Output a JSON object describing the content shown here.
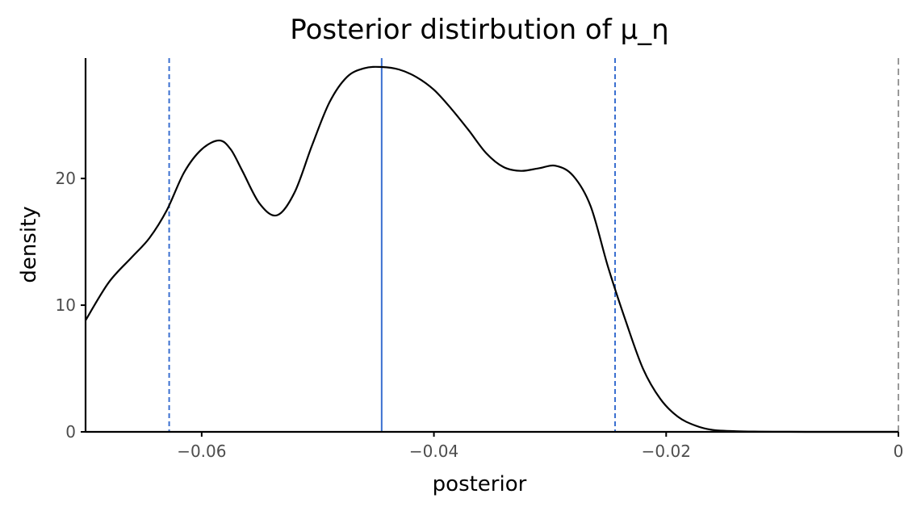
{
  "chart_data": {
    "type": "line",
    "title": "Posterior distirbution of μ_η",
    "xlabel": "posterior",
    "ylabel": "density",
    "xlim": [
      -0.07,
      0.0
    ],
    "ylim": [
      0,
      29.5
    ],
    "x_ticks": [
      -0.06,
      -0.04,
      -0.02,
      0
    ],
    "x_tick_labels": [
      "−0.06",
      "−0.04",
      "−0.02",
      "0"
    ],
    "y_ticks": [
      0,
      10,
      20
    ],
    "y_tick_labels": [
      "0",
      "10",
      "20"
    ],
    "grid": false,
    "legend": "none",
    "series": [
      {
        "x": [
          -0.07,
          -0.068,
          -0.066,
          -0.0645,
          -0.063,
          -0.0615,
          -0.06,
          -0.0585,
          -0.0575,
          -0.0565,
          -0.055,
          -0.0535,
          -0.052,
          -0.0505,
          -0.049,
          -0.0475,
          -0.046,
          -0.0445,
          -0.043,
          -0.0415,
          -0.04,
          -0.0385,
          -0.037,
          -0.0355,
          -0.034,
          -0.0325,
          -0.031,
          -0.0295,
          -0.028,
          -0.0265,
          -0.025,
          -0.0235,
          -0.022,
          -0.0205,
          -0.019,
          -0.0175,
          -0.016,
          -0.014,
          -0.012,
          -0.01,
          -0.008,
          -0.005,
          0.0
        ],
        "y": [
          8.8,
          11.8,
          13.8,
          15.3,
          17.5,
          20.5,
          22.3,
          23.0,
          22.3,
          20.6,
          18.0,
          17.1,
          18.9,
          22.6,
          26.0,
          28.0,
          28.7,
          28.8,
          28.6,
          28.0,
          27.0,
          25.5,
          23.8,
          22.0,
          20.9,
          20.6,
          20.8,
          21.0,
          20.2,
          17.8,
          13.0,
          8.8,
          5.0,
          2.6,
          1.2,
          0.5,
          0.15,
          0.05,
          0.02,
          0.01,
          0.0,
          0.0,
          0.0
        ],
        "color": "#000000"
      }
    ],
    "reference_lines": [
      {
        "x": -0.0445,
        "style": "solid",
        "color": "#3a6fd0"
      },
      {
        "x": -0.0628,
        "style": "dashed",
        "color": "#3a6fd0"
      },
      {
        "x": -0.0244,
        "style": "dashed",
        "color": "#3a6fd0"
      },
      {
        "x": 0.0,
        "style": "dashed",
        "color": "#555555"
      }
    ]
  }
}
